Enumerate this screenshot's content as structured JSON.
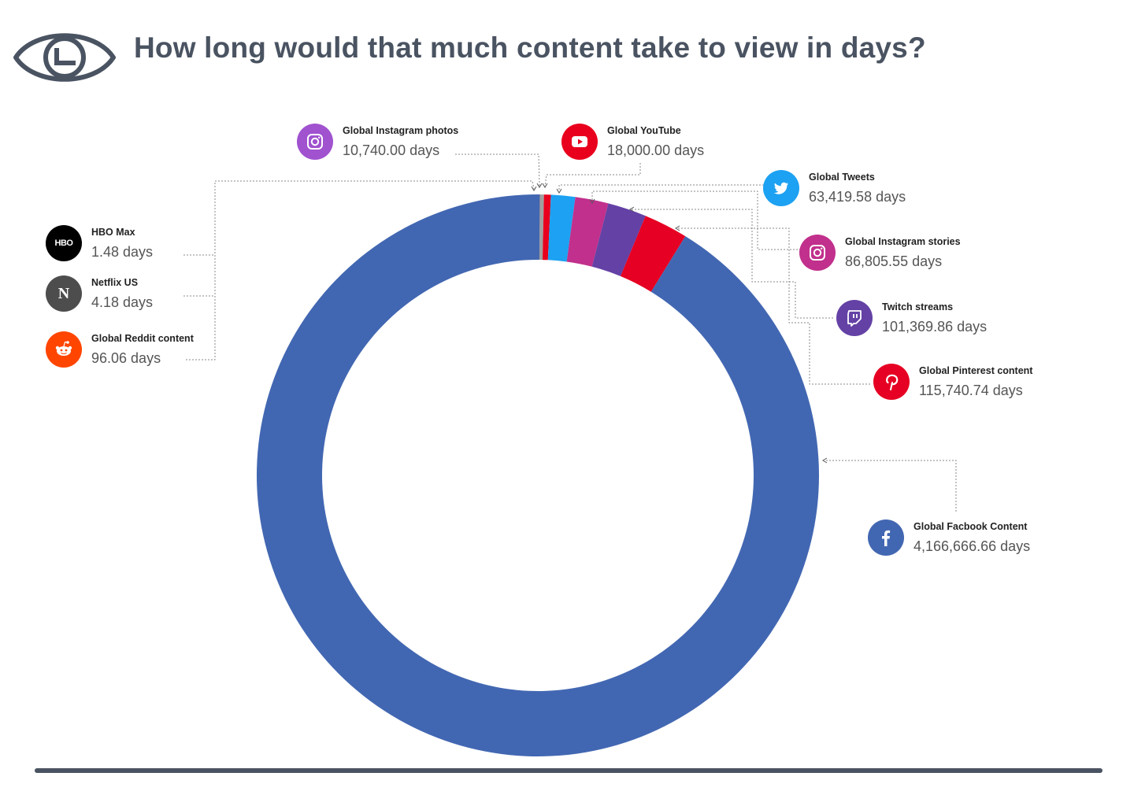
{
  "title": "How long would that much content take to view in days?",
  "chart_data": {
    "type": "pie",
    "variant": "donut",
    "unit": "days",
    "categories": [
      "HBO Max",
      "Netflix US",
      "Global Reddit content",
      "Global Instagram photos",
      "Global YouTube",
      "Global Tweets",
      "Global Instagram stories",
      "Twitch streams",
      "Global Pinterest content",
      "Global Facbook Content"
    ],
    "values": [
      1.48,
      4.18,
      96.06,
      10740.0,
      18000.0,
      63419.58,
      86805.55,
      101369.86,
      115740.74,
      4166666.66
    ],
    "colors": [
      "#222222",
      "#555555",
      "#ff4500",
      "#a0a0a0",
      "#e8001d",
      "#1da1f2",
      "#c1308c",
      "#6441a5",
      "#e60023",
      "#4267b2"
    ]
  },
  "labels": [
    {
      "name": "HBO Max",
      "value": "1.48 days",
      "icon": "hbo-icon",
      "color": "#000000"
    },
    {
      "name": "Netflix US",
      "value": "4.18 days",
      "icon": "netflix-icon",
      "color": "#4d4d4d"
    },
    {
      "name": "Global Reddit content",
      "value": "96.06 days",
      "icon": "reddit-icon",
      "color": "#ff4500"
    },
    {
      "name": "Global Instagram photos",
      "value": "10,740.00 days",
      "icon": "instagram-icon",
      "color": "#a052cf"
    },
    {
      "name": "Global YouTube",
      "value": "18,000.00 days",
      "icon": "youtube-icon",
      "color": "#e8001d"
    },
    {
      "name": "Global Tweets",
      "value": "63,419.58 days",
      "icon": "twitter-icon",
      "color": "#1da1f2"
    },
    {
      "name": "Global Instagram stories",
      "value": "86,805.55 days",
      "icon": "instagram-icon",
      "color": "#c1308c"
    },
    {
      "name": "Twitch streams",
      "value": "101,369.86 days",
      "icon": "twitch-icon",
      "color": "#6441a5"
    },
    {
      "name": "Global Pinterest content",
      "value": "115,740.74 days",
      "icon": "pinterest-icon",
      "color": "#e60023"
    },
    {
      "name": "Global Facbook Content",
      "value": "4,166,666.66 days",
      "icon": "facebook-icon",
      "color": "#4267b2"
    }
  ]
}
